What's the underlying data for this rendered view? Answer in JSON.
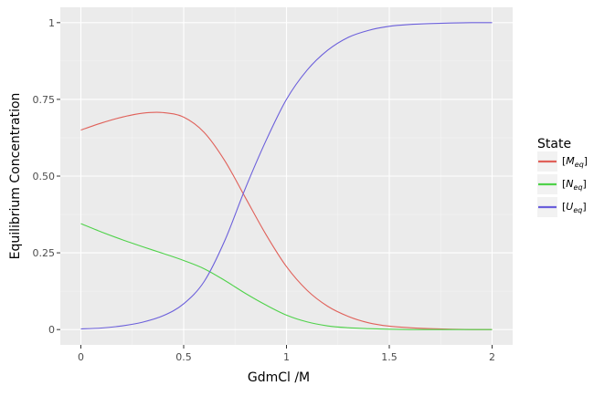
{
  "chart_data": {
    "type": "line",
    "xlabel": "GdmCl /M",
    "ylabel": "Equilibrium Concentration",
    "xlim": [
      -0.1,
      2.1
    ],
    "ylim": [
      -0.05,
      1.05
    ],
    "x_ticks": [
      {
        "value": 0,
        "label": "0"
      },
      {
        "value": 0.5,
        "label": "0.5"
      },
      {
        "value": 1,
        "label": "1"
      },
      {
        "value": 1.5,
        "label": "1.5"
      },
      {
        "value": 2,
        "label": "2"
      }
    ],
    "y_ticks": [
      {
        "value": 0,
        "label": "0"
      },
      {
        "value": 0.25,
        "label": "0.25"
      },
      {
        "value": 0.5,
        "label": "0.50"
      },
      {
        "value": 0.75,
        "label": "0.75"
      },
      {
        "value": 1,
        "label": "1"
      }
    ],
    "grid": true,
    "legend_title": "State",
    "legend_position": "right",
    "x": [
      0,
      0.1,
      0.2,
      0.3,
      0.4,
      0.5,
      0.6,
      0.7,
      0.8,
      0.9,
      1.0,
      1.1,
      1.2,
      1.3,
      1.4,
      1.5,
      1.6,
      1.7,
      1.8,
      1.9,
      2.0
    ],
    "series": [
      {
        "name": "M",
        "subscript": "eq",
        "color": "#e0615a",
        "values": [
          0.65,
          0.673,
          0.692,
          0.705,
          0.707,
          0.692,
          0.642,
          0.55,
          0.43,
          0.31,
          0.205,
          0.128,
          0.076,
          0.043,
          0.022,
          0.011,
          0.006,
          0.003,
          0.001,
          0.0,
          0.0
        ]
      },
      {
        "name": "N",
        "subscript": "eq",
        "color": "#4fd24a",
        "values": [
          0.345,
          0.318,
          0.293,
          0.27,
          0.248,
          0.225,
          0.198,
          0.16,
          0.118,
          0.08,
          0.047,
          0.025,
          0.012,
          0.006,
          0.003,
          0.001,
          0.0,
          0.0,
          0.0,
          0.0,
          0.0
        ]
      },
      {
        "name": "U",
        "subscript": "eq",
        "color": "#6b5fdb",
        "values": [
          0.002,
          0.005,
          0.012,
          0.024,
          0.045,
          0.084,
          0.157,
          0.29,
          0.46,
          0.615,
          0.75,
          0.845,
          0.91,
          0.952,
          0.975,
          0.988,
          0.994,
          0.997,
          0.999,
          1.0,
          1.0
        ]
      }
    ]
  }
}
